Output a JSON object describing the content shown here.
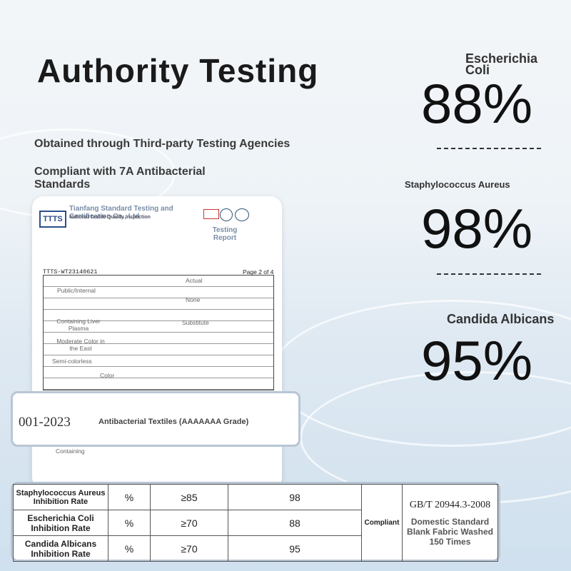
{
  "title": "Authority Testing",
  "subtitles": [
    "Obtained through Third-party Testing Agencies",
    "Compliant with 7A Antibacterial Standards"
  ],
  "stats": [
    {
      "name": "Escherichia Coli",
      "value": "88%"
    },
    {
      "name": "Staphylococcus Aureus",
      "value": "98%"
    },
    {
      "name": "Candida Albicans",
      "value": "95%"
    }
  ],
  "report": {
    "issuer": "Tianfang Standard Testing and Certification Co., Ltd",
    "inspection": "National Textile Quality Inspection",
    "doc_type": "Testing Report",
    "number": "TTTS-WT23140621",
    "page": "Page 2 of 4",
    "cells": [
      "Public/Internal",
      "Containing Liver Plasma",
      "Substitute",
      "Moderate Color in the East",
      "Semi-colorless",
      "Color",
      "None",
      "Actual",
      "Containing"
    ]
  },
  "banner": {
    "code": "001-2023",
    "name": "Antibacterial Textiles (AAAAAAA Grade)"
  },
  "table": {
    "rows": [
      [
        "Staphylococcus Aureus Inhibition Rate",
        "%",
        "≥85",
        "98"
      ],
      [
        "Escherichia Coli Inhibition Rate",
        "%",
        "≥70",
        "88"
      ],
      [
        "Candida Albicans Inhibition Rate",
        "%",
        "≥70",
        "95"
      ]
    ],
    "compliance": "Compliant",
    "standard": "GB/T 20944.3-2008",
    "condition": "Domestic Standard Blank Fabric Washed 150 Times"
  }
}
